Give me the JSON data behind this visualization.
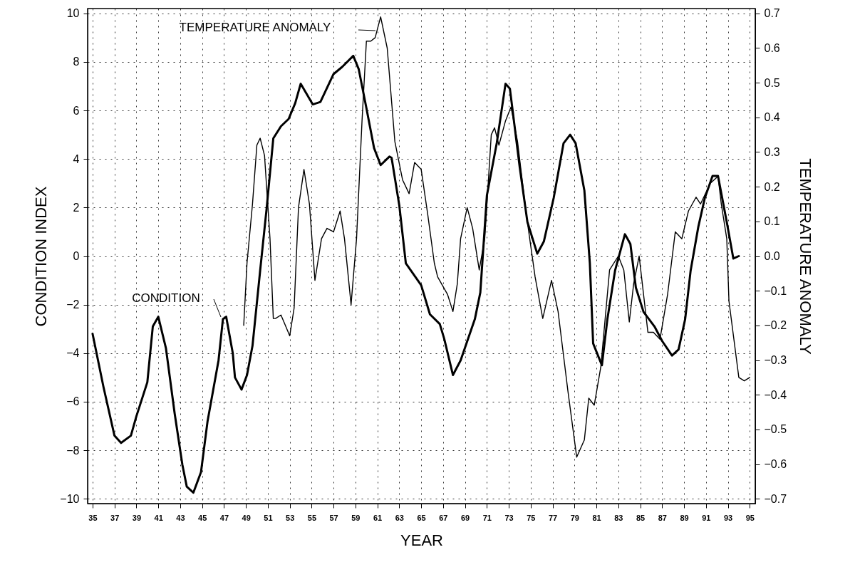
{
  "chart_data": {
    "type": "line",
    "xlabel": "YEAR",
    "ylabel": "CONDITION INDEX",
    "y2label": "TEMPERATURE ANOMALY",
    "xlim": [
      34.55,
      95.5
    ],
    "xticks": [
      35,
      37,
      39,
      41,
      43,
      45,
      47,
      49,
      51,
      53,
      55,
      57,
      59,
      61,
      63,
      65,
      67,
      69,
      71,
      73,
      75,
      77,
      79,
      81,
      83,
      85,
      87,
      89,
      91,
      93,
      95
    ],
    "ylim": [
      -10.2,
      10.2
    ],
    "yticks": [
      -10,
      -8,
      -6,
      -4,
      -2,
      0,
      2,
      4,
      6,
      8,
      10
    ],
    "y2lim": [
      -0.714,
      0.714
    ],
    "y2ticks": [
      -0.7,
      -0.6,
      -0.5,
      -0.4,
      -0.3,
      -0.2,
      -0.1,
      {
        "value": 0,
        "label": "0.0"
      },
      0.1,
      0.2,
      0.3,
      0.4,
      0.5,
      0.6,
      0.7
    ],
    "grid": true,
    "series": [
      {
        "name": "CONDITION",
        "color": "#000000",
        "x": [
          35,
          36,
          37,
          37.6,
          38.5,
          39,
          40,
          40.5,
          41,
          41.7,
          42.5,
          43.2,
          43.6,
          44.2,
          44.9,
          45.5,
          46.5,
          46.9,
          47.2,
          47.8,
          48,
          48.6,
          49.1,
          49.6,
          50.3,
          50.9,
          51.5,
          52.2,
          52.9,
          53.5,
          54,
          55.1,
          55.8,
          57,
          57.8,
          58.8,
          59.3,
          60,
          60.7,
          61.3,
          62.1,
          62.3,
          63,
          63.6,
          65,
          65.8,
          66.7,
          67.1,
          67.9,
          68.6,
          69.9,
          70.4,
          71,
          71.9,
          72.7,
          73.1,
          74,
          74.7,
          75.6,
          76.2,
          77.1,
          78,
          78.6,
          79.1,
          79.9,
          80.4,
          80.7,
          81.5,
          82,
          82.7,
          83.6,
          84.1,
          84.6,
          85.3,
          86.3,
          87,
          87.9,
          88.5,
          89.1,
          89.6,
          90.3,
          90.9,
          91.6,
          92.1,
          92.9,
          93.5,
          94
        ],
        "values": [
          -3.2,
          -5.4,
          -7.4,
          -7.7,
          -7.4,
          -6.6,
          -5.2,
          -2.9,
          -2.5,
          -3.8,
          -6.5,
          -8.6,
          -9.5,
          -9.75,
          -8.9,
          -6.8,
          -4.3,
          -2.6,
          -2.5,
          -4,
          -5,
          -5.5,
          -4.9,
          -3.7,
          -0.6,
          2,
          4.85,
          5.35,
          5.65,
          6.3,
          7.1,
          6.25,
          6.35,
          7.5,
          7.8,
          8.25,
          7.7,
          6.1,
          4.45,
          3.75,
          4.1,
          4.05,
          2.1,
          -0.3,
          -1.2,
          -2.4,
          -2.8,
          -3.4,
          -4.9,
          -4.3,
          -2.6,
          -1.5,
          2.5,
          4.65,
          7.1,
          6.9,
          3.65,
          1.4,
          0.1,
          0.6,
          2.4,
          4.65,
          5,
          4.65,
          2.7,
          -0.3,
          -3.6,
          -4.5,
          -2.6,
          -0.6,
          0.9,
          0.5,
          -1.3,
          -2.3,
          -2.9,
          -3.5,
          -4.1,
          -3.85,
          -2.6,
          -0.6,
          1.2,
          2.4,
          3.3,
          3.3,
          1.4,
          -0.1,
          0
        ]
      },
      {
        "name": "TEMPERATURE ANOMALY",
        "color": "#000000",
        "axis": "y2",
        "x": [
          48.8,
          49.1,
          49.6,
          50,
          50.3,
          50.7,
          51.2,
          51.5,
          51.7,
          52.2,
          52.6,
          53,
          53.4,
          53.8,
          54.3,
          54.8,
          55.3,
          55.9,
          56.4,
          57,
          57.6,
          58,
          58.6,
          59.1,
          59.6,
          60,
          60.4,
          60.8,
          61.3,
          61.9,
          62.6,
          63.3,
          63.9,
          64.4,
          65,
          65.6,
          66.2,
          66.5,
          67.4,
          67.9,
          68.3,
          68.6,
          69.2,
          69.7,
          70.3,
          70.8,
          71.4,
          71.7,
          72.1,
          72.7,
          73.2,
          73.8,
          74.6,
          75.4,
          76.1,
          76.9,
          77.5,
          78.4,
          79.2,
          79.9,
          80.3,
          80.8,
          81.4,
          82.2,
          83,
          83.5,
          84,
          84.4,
          84.9,
          85.7,
          86.2,
          86.8,
          87.5,
          88.2,
          88.8,
          89.4,
          90.1,
          90.5,
          91.4,
          92.1,
          92.4,
          92.9,
          93.1,
          94,
          94.5,
          95
        ],
        "values": [
          -0.2,
          -0.02,
          0.15,
          0.32,
          0.34,
          0.29,
          0.05,
          -0.18,
          -0.18,
          -0.17,
          -0.2,
          -0.23,
          -0.15,
          0.14,
          0.25,
          0.15,
          -0.07,
          0.05,
          0.08,
          0.07,
          0.13,
          0.05,
          -0.14,
          0.05,
          0.39,
          0.62,
          0.62,
          0.63,
          0.69,
          0.6,
          0.33,
          0.22,
          0.18,
          0.27,
          0.25,
          0.12,
          -0.02,
          -0.06,
          -0.11,
          -0.16,
          -0.08,
          0.05,
          0.14,
          0.08,
          -0.04,
          0.05,
          0.35,
          0.37,
          0.32,
          0.39,
          0.43,
          0.33,
          0.12,
          -0.06,
          -0.18,
          -0.07,
          -0.16,
          -0.39,
          -0.58,
          -0.53,
          -0.41,
          -0.43,
          -0.32,
          -0.04,
          0,
          -0.04,
          -0.19,
          -0.08,
          0,
          -0.22,
          -0.22,
          -0.24,
          -0.11,
          0.07,
          0.05,
          0.13,
          0.17,
          0.15,
          0.21,
          0.23,
          0.15,
          0.05,
          -0.13,
          -0.35,
          -0.36,
          -0.35
        ]
      }
    ]
  }
}
